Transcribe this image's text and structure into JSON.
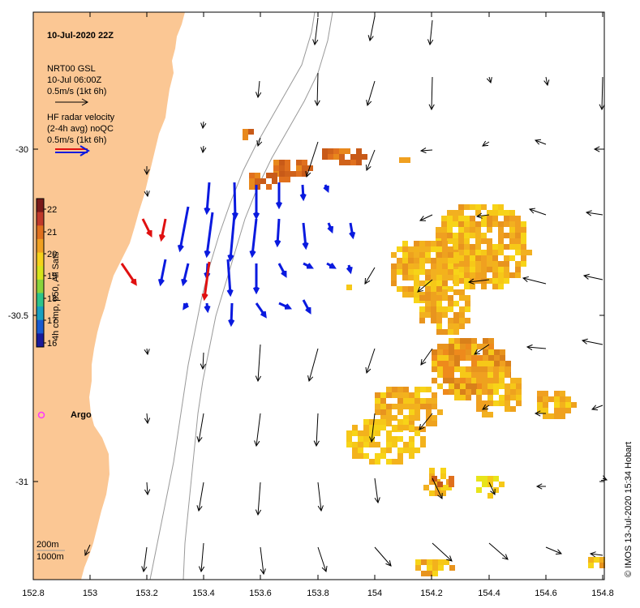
{
  "title": "10-Jul-2020 22Z",
  "credit": "© IMOS 13-Jul-2020 15:34 Hobart",
  "legend": {
    "gsl_lines": [
      "NRT00 GSL",
      "10-Jul 06:00Z",
      "0.5m/s (1kt 6h)"
    ],
    "hf_lines": [
      "HF radar velocity",
      "(2-4h avg) noQC",
      "0.5m/s (1kt 6h)"
    ]
  },
  "colorbar": {
    "label": "4h comp, p50, All Sats",
    "ticks": [
      "22",
      "21",
      "20",
      "19",
      "18",
      "17",
      "16"
    ],
    "colors": [
      "#7a1a1a",
      "#c0392b",
      "#e0701e",
      "#f0a020",
      "#f6d21a",
      "#d6e41a",
      "#8ad43a",
      "#2ec48a",
      "#1aa0c0",
      "#1a5ad0",
      "#1a1a9a"
    ]
  },
  "x_ticks": [
    "152.8",
    "153",
    "153.2",
    "153.4",
    "153.6",
    "153.8",
    "154",
    "154.2",
    "154.4",
    "154.6",
    "154.8"
  ],
  "y_ticks": [
    "-30",
    "-30.5",
    "-31"
  ],
  "argo": {
    "label": "Argo",
    "color": "#ff33ff"
  },
  "depth_labels": [
    "200m",
    "1000m"
  ],
  "colors": {
    "land": "#fbc794",
    "hf_blue": "#0a1adf",
    "hf_red": "#e01010",
    "gsl_arrow": "#000000",
    "isobath": "#999999"
  }
}
